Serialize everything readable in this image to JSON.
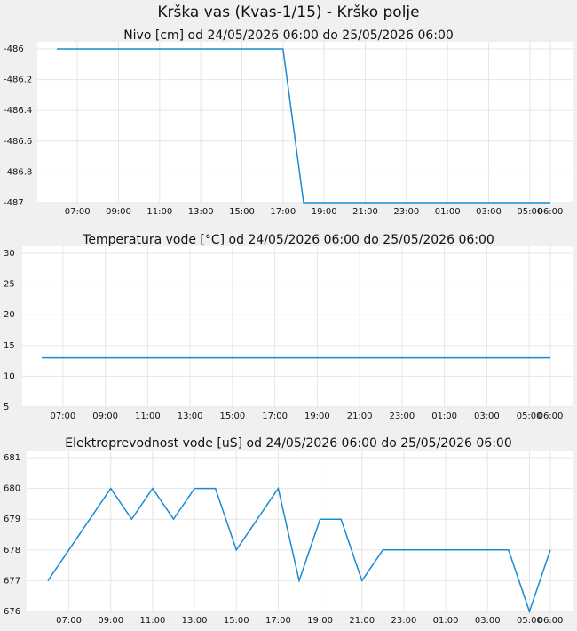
{
  "title": "Krška vas (Kvas-1/15) - Krško polje",
  "chart_data": [
    {
      "type": "line",
      "title": "Nivo [cm] od 24/05/2026 06:00 do 25/05/2026 06:00",
      "categories": [
        null,
        "07:00",
        null,
        "09:00",
        null,
        "11:00",
        null,
        "13:00",
        null,
        "15:00",
        null,
        "17:00",
        null,
        "19:00",
        null,
        "21:00",
        null,
        "23:00",
        null,
        "01:00",
        null,
        "03:00",
        null,
        "05:00",
        "06:00"
      ],
      "series": [
        {
          "color": "#1b8ad3",
          "values": [
            -486,
            -486,
            -486,
            -486,
            -486,
            -486,
            -486,
            -486,
            -486,
            -486,
            -486,
            -486,
            -487,
            -487,
            -487,
            -487,
            -487,
            -487,
            -487,
            -487,
            -487,
            -487,
            -487,
            -487,
            -487
          ]
        }
      ],
      "ylim": [
        -487,
        -486
      ],
      "yticks": [
        -487,
        -486.8,
        -486.6,
        -486.4,
        -486.2,
        -486
      ],
      "grid": true
    },
    {
      "type": "line",
      "title": "Temperatura vode [°C] od 24/05/2026 06:00 do 25/05/2026 06:00",
      "categories": [
        null,
        "07:00",
        null,
        "09:00",
        null,
        "11:00",
        null,
        "13:00",
        null,
        "15:00",
        null,
        "17:00",
        null,
        "19:00",
        null,
        "21:00",
        null,
        "23:00",
        null,
        "01:00",
        null,
        "03:00",
        null,
        "05:00",
        "06:00"
      ],
      "series": [
        {
          "color": "#1b8ad3",
          "values": [
            13,
            13,
            13,
            13,
            13,
            13,
            13,
            13,
            13,
            13,
            13,
            13,
            13,
            13,
            13,
            13,
            13,
            13,
            13,
            13,
            13,
            13,
            13,
            13,
            13
          ]
        }
      ],
      "ylim": [
        5,
        30
      ],
      "yticks": [
        5,
        10,
        15,
        20,
        25,
        30
      ],
      "grid": true
    },
    {
      "type": "line",
      "title": "Elektroprevodnost vode [uS] od 24/05/2026 06:00 do 25/05/2026 06:00",
      "categories": [
        null,
        "07:00",
        null,
        "09:00",
        null,
        "11:00",
        null,
        "13:00",
        null,
        "15:00",
        null,
        "17:00",
        null,
        "19:00",
        null,
        "21:00",
        null,
        "23:00",
        null,
        "01:00",
        null,
        "03:00",
        null,
        "05:00",
        "06:00"
      ],
      "series": [
        {
          "color": "#1b8ad3",
          "values": [
            677,
            678,
            679,
            680,
            679,
            680,
            679,
            680,
            680,
            678,
            679,
            680,
            677,
            679,
            679,
            677,
            678,
            678,
            678,
            678,
            678,
            678,
            678,
            676,
            678
          ]
        }
      ],
      "ylim": [
        676,
        681
      ],
      "yticks": [
        676,
        677,
        678,
        679,
        680,
        681
      ],
      "grid": true
    }
  ]
}
